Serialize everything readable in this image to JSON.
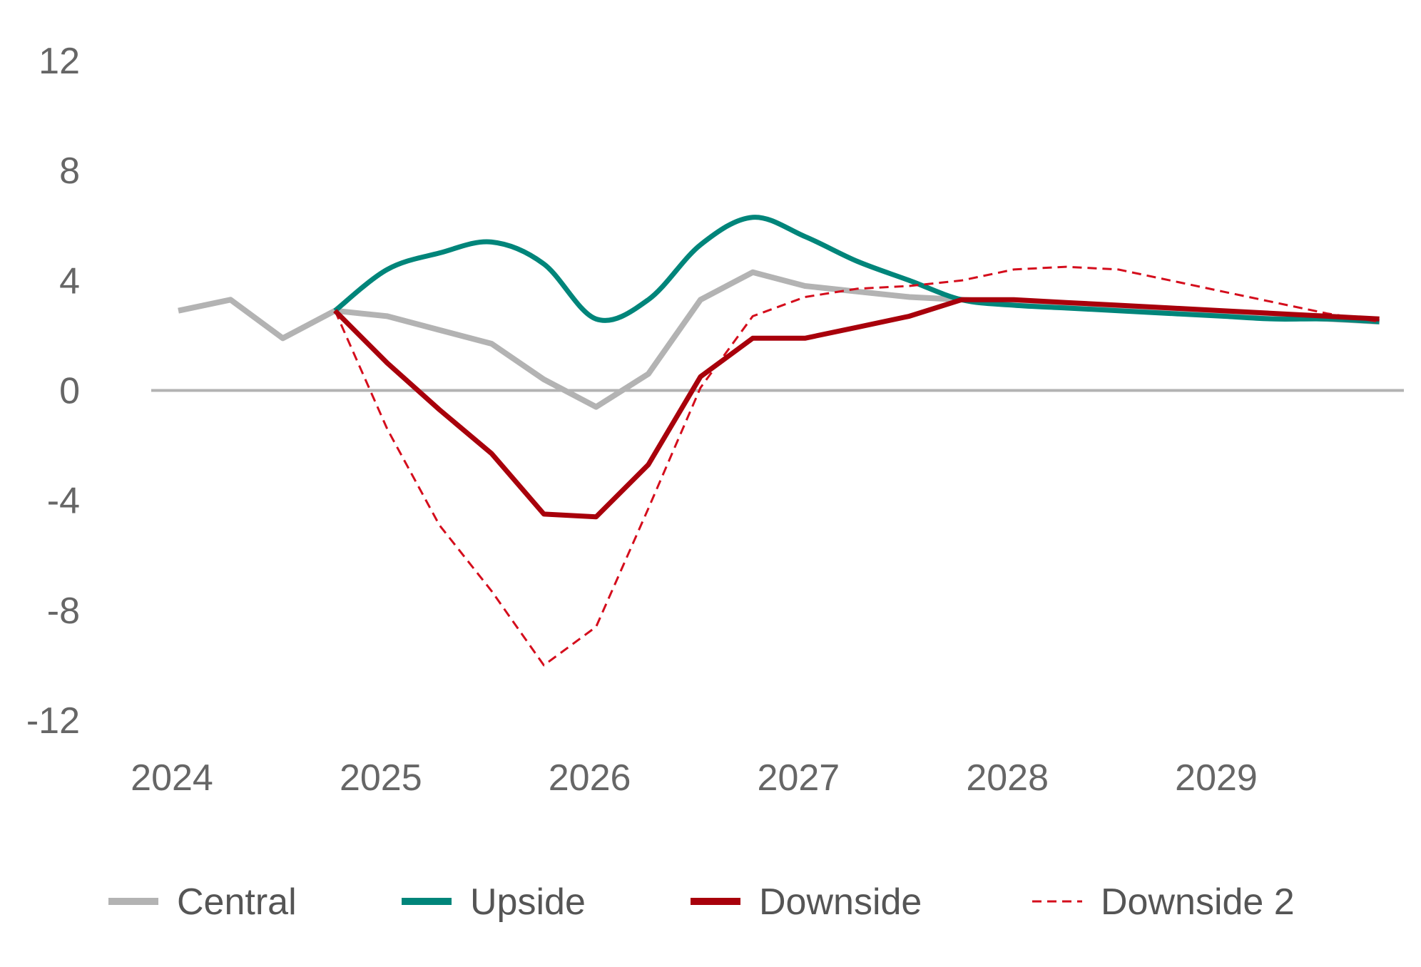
{
  "chart_data": {
    "type": "line",
    "title": "",
    "xlabel": "",
    "ylabel": "",
    "x_ticks": [
      "2024",
      "2025",
      "2026",
      "2027",
      "2028",
      "2029"
    ],
    "x_range": [
      0,
      23
    ],
    "ylim": [
      -12,
      12
    ],
    "y_ticks": [
      12,
      8,
      4,
      0,
      -4,
      -8,
      -12
    ],
    "zero_line": true,
    "grid": false,
    "legend_position": "bottom",
    "series": [
      {
        "name": "Central",
        "color": "#b3b3b3",
        "style": "solid",
        "smooth": false,
        "x": [
          0,
          1,
          2,
          3,
          4,
          5,
          6,
          7,
          8,
          9,
          10,
          11,
          12,
          13,
          14,
          15,
          16,
          17,
          18,
          19,
          20,
          21,
          22,
          23
        ],
        "values": [
          2.9,
          3.3,
          1.9,
          2.9,
          2.7,
          2.2,
          1.7,
          0.4,
          -0.6,
          0.6,
          3.3,
          4.3,
          3.8,
          3.6,
          3.4,
          3.3,
          3.2,
          3.1,
          3.0,
          2.9,
          2.8,
          2.7,
          2.6,
          2.5
        ]
      },
      {
        "name": "Upside",
        "color": "#00857a",
        "style": "solid",
        "smooth": true,
        "x": [
          3,
          4,
          5,
          6,
          7,
          8,
          9,
          10,
          11,
          12,
          13,
          14,
          15,
          16,
          17,
          18,
          19,
          20,
          21,
          22,
          23
        ],
        "values": [
          2.9,
          4.4,
          5.0,
          5.4,
          4.6,
          2.6,
          3.3,
          5.3,
          6.3,
          5.6,
          4.7,
          4.0,
          3.3,
          3.1,
          3.0,
          2.9,
          2.8,
          2.7,
          2.6,
          2.6,
          2.5
        ]
      },
      {
        "name": "Downside",
        "color": "#a8000b",
        "style": "solid",
        "smooth": false,
        "x": [
          3,
          4,
          5,
          6,
          7,
          8,
          9,
          10,
          11,
          12,
          13,
          14,
          15,
          16,
          17,
          18,
          19,
          20,
          21,
          22,
          23
        ],
        "values": [
          2.9,
          1.0,
          -0.7,
          -2.3,
          -4.5,
          -4.6,
          -2.7,
          0.5,
          1.9,
          1.9,
          2.3,
          2.7,
          3.3,
          3.3,
          3.2,
          3.1,
          3.0,
          2.9,
          2.8,
          2.7,
          2.6
        ]
      },
      {
        "name": "Downside 2",
        "color": "#d40d1c",
        "style": "dashed",
        "smooth": false,
        "x": [
          3,
          4,
          5,
          6,
          7,
          8,
          9,
          10,
          11,
          12,
          13,
          14,
          15,
          16,
          17,
          18,
          19,
          20,
          21,
          22,
          23
        ],
        "values": [
          2.9,
          -1.4,
          -4.9,
          -7.3,
          -10.0,
          -8.6,
          -4.3,
          0.1,
          2.7,
          3.4,
          3.7,
          3.8,
          4.0,
          4.4,
          4.5,
          4.4,
          4.0,
          3.6,
          3.2,
          2.8,
          2.5
        ]
      }
    ]
  }
}
